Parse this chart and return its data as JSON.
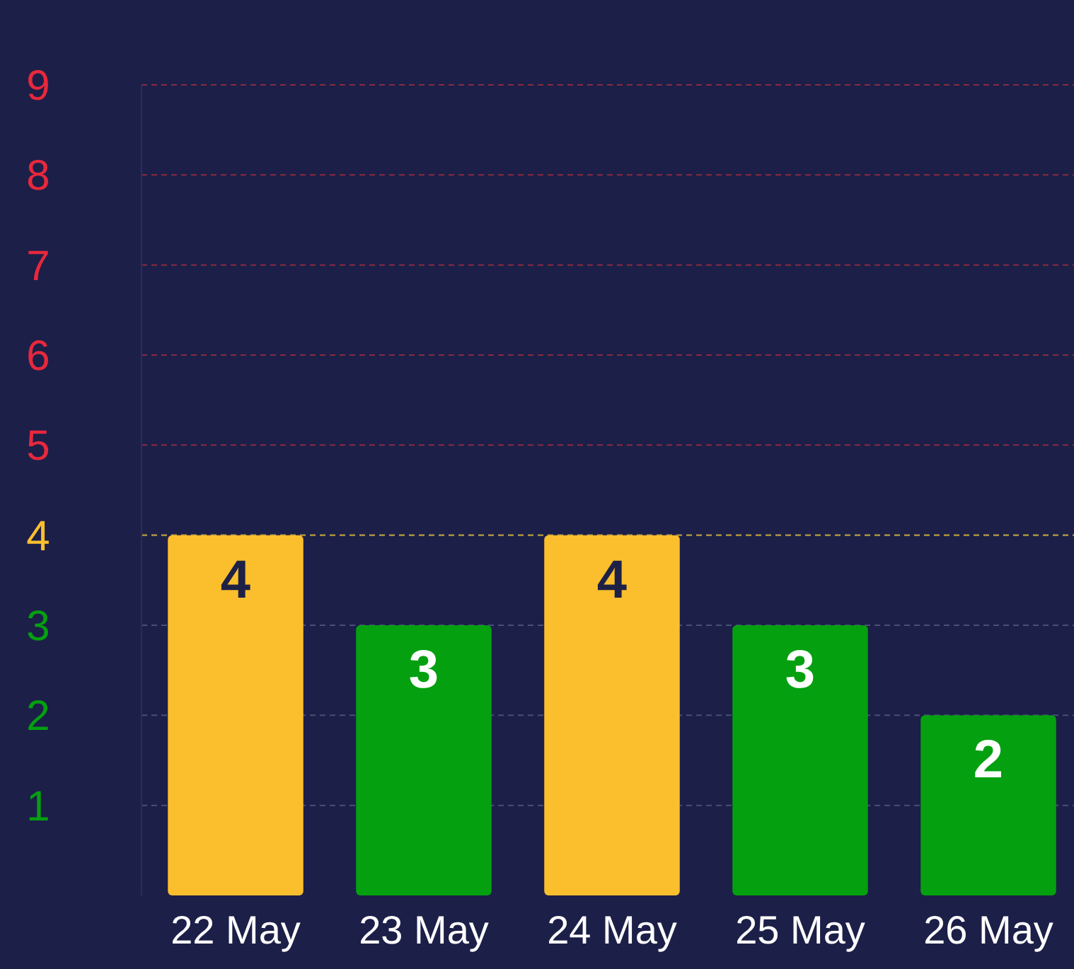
{
  "chart_data": {
    "type": "bar",
    "categories": [
      "22 May",
      "23 May",
      "24 May",
      "25 May",
      "26 May"
    ],
    "values": [
      4,
      3,
      4,
      3,
      2
    ],
    "data_labels": true,
    "ref_lines": [
      {
        "axis": "y",
        "value": 4,
        "color": "#b49a3a",
        "line_style": "dashed"
      }
    ],
    "colors": [
      "#fbbf2e",
      "#04a010",
      "#fbbf2e",
      "#04a010",
      "#04a010"
    ],
    "ylim": [
      0,
      9
    ],
    "yticks": [
      1,
      2,
      3,
      4,
      5,
      6,
      7,
      8,
      9
    ],
    "grid": "y"
  }
}
